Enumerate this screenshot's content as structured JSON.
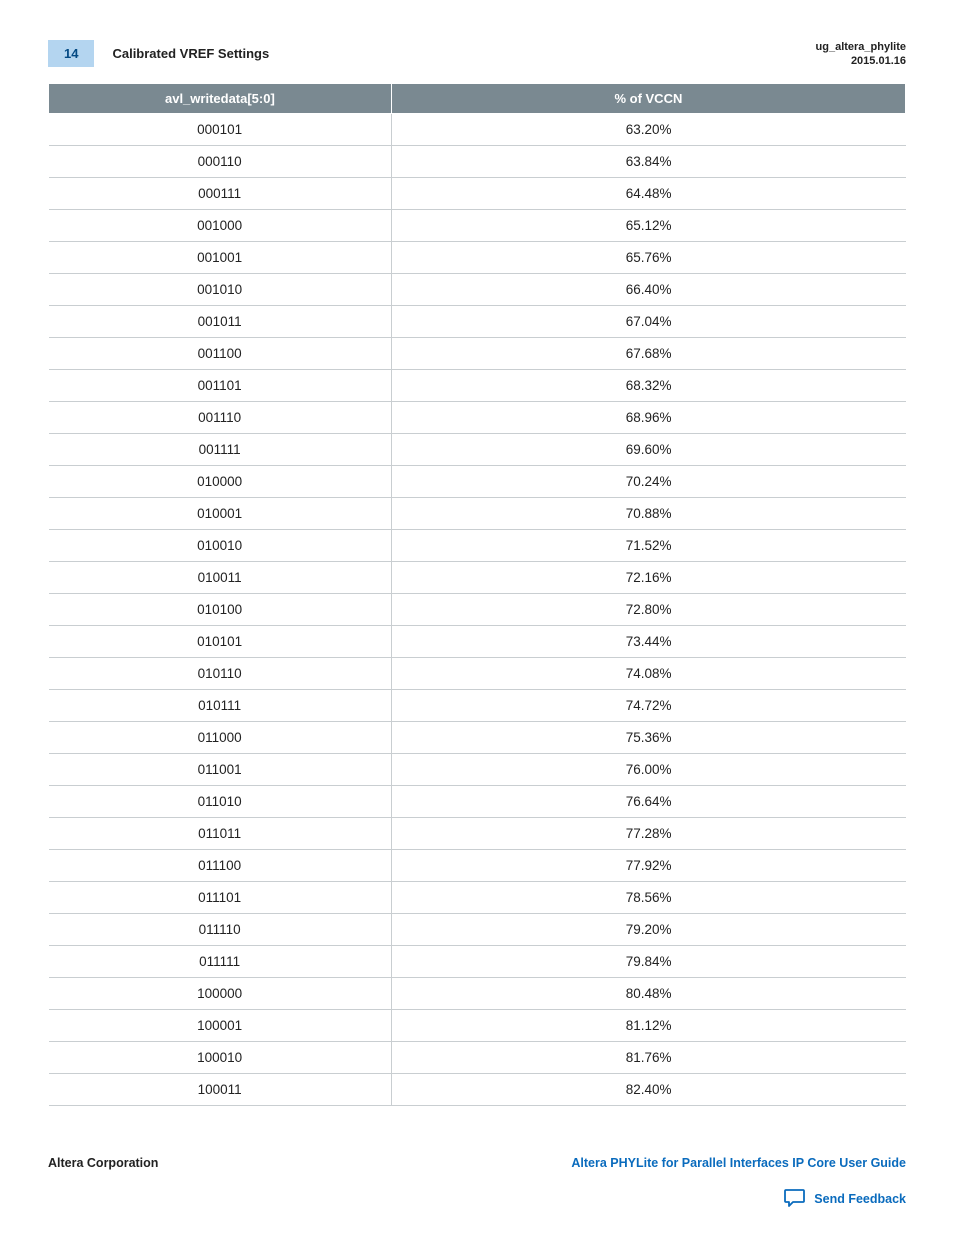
{
  "header": {
    "page_number": "14",
    "section_title": "Calibrated VREF Settings",
    "doc_id": "ug_altera_phylite",
    "doc_date": "2015.01.16"
  },
  "table": {
    "columns": [
      "avl_writedata[5:0]",
      "% of VCCN"
    ],
    "rows": [
      [
        "000101",
        "63.20%"
      ],
      [
        "000110",
        "63.84%"
      ],
      [
        "000111",
        "64.48%"
      ],
      [
        "001000",
        "65.12%"
      ],
      [
        "001001",
        "65.76%"
      ],
      [
        "001010",
        "66.40%"
      ],
      [
        "001011",
        "67.04%"
      ],
      [
        "001100",
        "67.68%"
      ],
      [
        "001101",
        "68.32%"
      ],
      [
        "001110",
        "68.96%"
      ],
      [
        "001111",
        "69.60%"
      ],
      [
        "010000",
        "70.24%"
      ],
      [
        "010001",
        "70.88%"
      ],
      [
        "010010",
        "71.52%"
      ],
      [
        "010011",
        "72.16%"
      ],
      [
        "010100",
        "72.80%"
      ],
      [
        "010101",
        "73.44%"
      ],
      [
        "010110",
        "74.08%"
      ],
      [
        "010111",
        "74.72%"
      ],
      [
        "011000",
        "75.36%"
      ],
      [
        "011001",
        "76.00%"
      ],
      [
        "011010",
        "76.64%"
      ],
      [
        "011011",
        "77.28%"
      ],
      [
        "011100",
        "77.92%"
      ],
      [
        "011101",
        "78.56%"
      ],
      [
        "011110",
        "79.20%"
      ],
      [
        "011111",
        "79.84%"
      ],
      [
        "100000",
        "80.48%"
      ],
      [
        "100001",
        "81.12%"
      ],
      [
        "100010",
        "81.76%"
      ],
      [
        "100011",
        "82.40%"
      ]
    ],
    "header_bg": "#7a8991",
    "header_fg": "#ffffff",
    "row_border": "#c9ced1",
    "cell_fontsize": 13.5
  },
  "footer": {
    "left": "Altera Corporation",
    "right": "Altera PHYLite for Parallel Interfaces IP Core User Guide",
    "feedback_label": "Send Feedback",
    "link_color": "#0a6bbd"
  }
}
